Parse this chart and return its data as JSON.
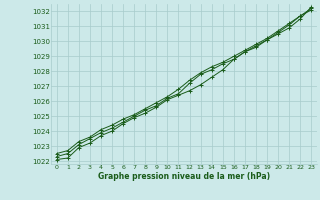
{
  "xlabel": "Graphe pression niveau de la mer (hPa)",
  "ylim": [
    1021.8,
    1032.5
  ],
  "xlim": [
    -0.5,
    23.5
  ],
  "yticks": [
    1022,
    1023,
    1024,
    1025,
    1026,
    1027,
    1028,
    1029,
    1030,
    1031,
    1032
  ],
  "xticks": [
    0,
    1,
    2,
    3,
    4,
    5,
    6,
    7,
    8,
    9,
    10,
    11,
    12,
    13,
    14,
    15,
    16,
    17,
    18,
    19,
    20,
    21,
    22,
    23
  ],
  "bg_color": "#cce9e9",
  "grid_color": "#a8cccc",
  "line_color": "#1a5c1a",
  "line1": [
    1022.1,
    1022.2,
    1022.9,
    1023.2,
    1023.7,
    1024.0,
    1024.5,
    1024.9,
    1025.2,
    1025.6,
    1026.1,
    1026.4,
    1026.7,
    1027.1,
    1027.6,
    1028.1,
    1028.8,
    1029.3,
    1029.7,
    1030.1,
    1030.5,
    1030.9,
    1031.5,
    1032.3
  ],
  "line2": [
    1022.3,
    1022.5,
    1023.1,
    1023.5,
    1023.9,
    1024.2,
    1024.6,
    1025.0,
    1025.4,
    1025.7,
    1026.2,
    1026.5,
    1027.2,
    1027.8,
    1028.1,
    1028.5,
    1028.8,
    1029.3,
    1029.6,
    1030.1,
    1030.6,
    1031.1,
    1031.7,
    1032.1
  ],
  "line3": [
    1022.5,
    1022.7,
    1023.3,
    1023.6,
    1024.1,
    1024.4,
    1024.8,
    1025.1,
    1025.5,
    1025.9,
    1026.3,
    1026.8,
    1027.4,
    1027.9,
    1028.3,
    1028.6,
    1029.0,
    1029.4,
    1029.8,
    1030.2,
    1030.7,
    1031.2,
    1031.7,
    1032.2
  ]
}
